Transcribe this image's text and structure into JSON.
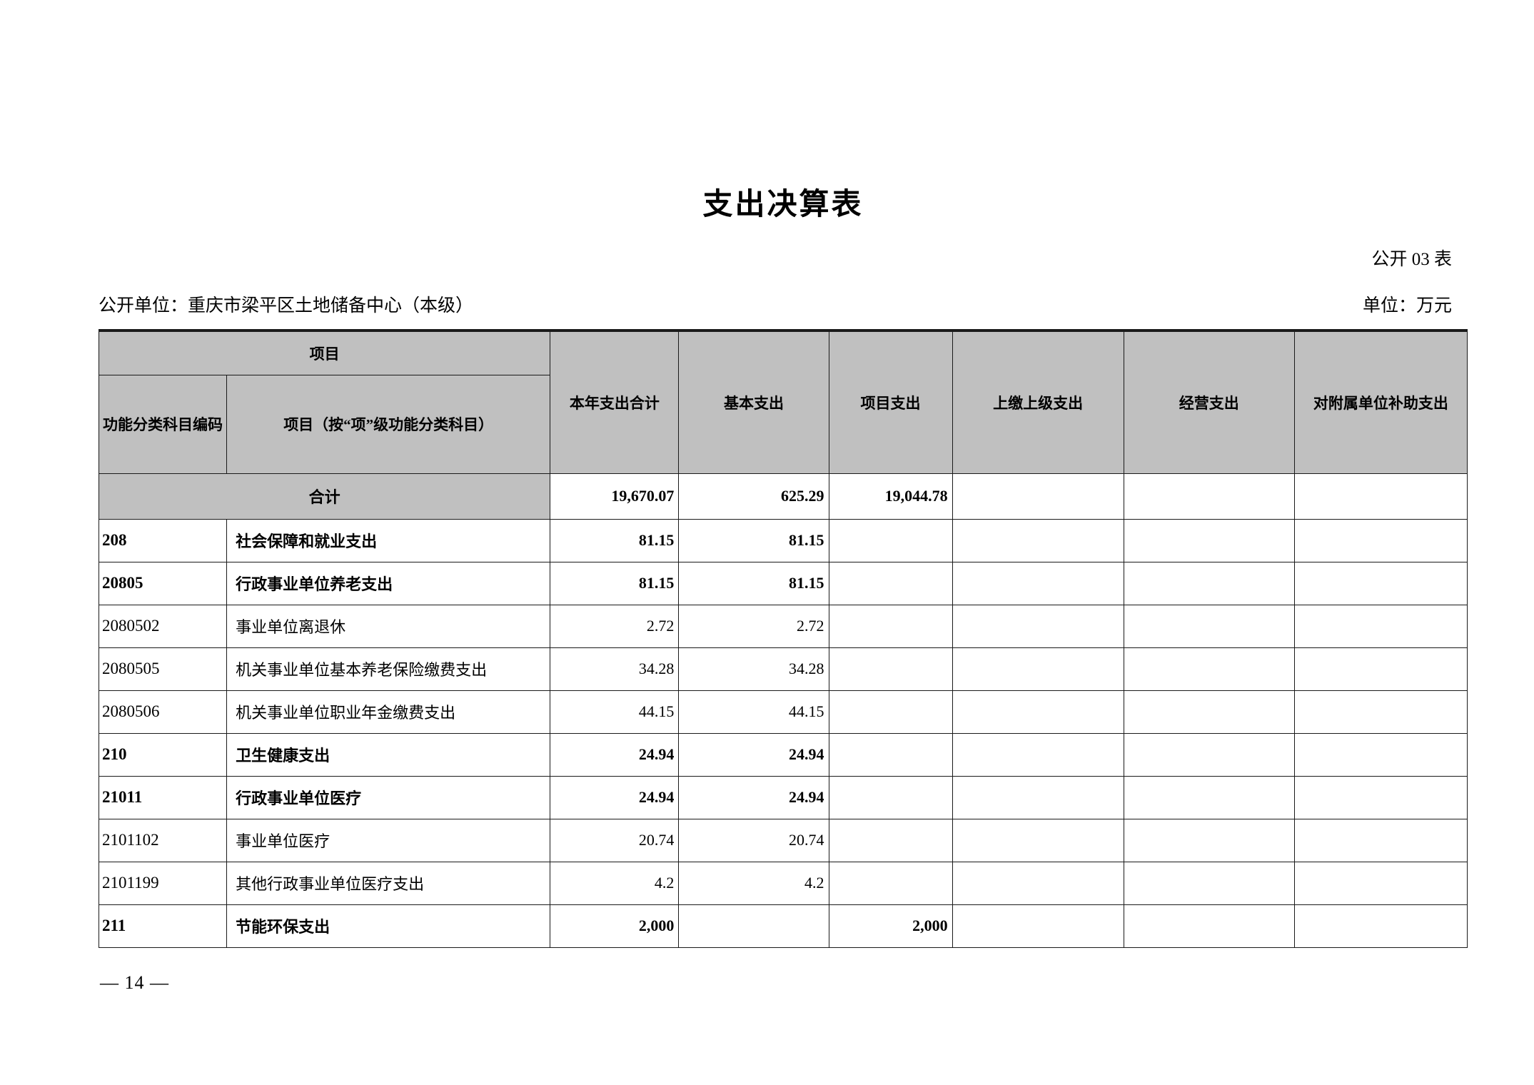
{
  "page": {
    "title": "支出决算表",
    "table_code": "公开 03 表",
    "publisher_line": "公开单位：重庆市梁平区土地储备中心（本级）",
    "unit_line": "单位：万元",
    "page_number": "— 14 —"
  },
  "colors": {
    "header_bg": "#c0c0c0",
    "border": "#1a1a1a",
    "page_bg": "#ffffff"
  },
  "table": {
    "header": {
      "project_group": "项目",
      "code_col": "功能分类科目编码",
      "item_col": "项目（按“项”级功能分类科目）",
      "year_total_col": "本年支出合计",
      "basic_col": "基本支出",
      "project_col": "项目支出",
      "upper_col": "上缴上级支出",
      "operating_col": "经营支出",
      "subsidy_col": "对附属单位补助支出"
    },
    "total_row": {
      "label": "合计",
      "year_total": "19,670.07",
      "basic": "625.29",
      "project": "19,044.78",
      "upper": "",
      "operating": "",
      "subsidy": ""
    },
    "rows": [
      {
        "code": "208",
        "name": "社会保障和就业支出",
        "year_total": "81.15",
        "basic": "81.15",
        "project": "",
        "upper": "",
        "operating": "",
        "subsidy": ""
      },
      {
        "code": "20805",
        "name": "行政事业单位养老支出",
        "year_total": "81.15",
        "basic": "81.15",
        "project": "",
        "upper": "",
        "operating": "",
        "subsidy": ""
      },
      {
        "code": "2080502",
        "name": "事业单位离退休",
        "year_total": "2.72",
        "basic": "2.72",
        "project": "",
        "upper": "",
        "operating": "",
        "subsidy": ""
      },
      {
        "code": "2080505",
        "name": "机关事业单位基本养老保险缴费支出",
        "year_total": "34.28",
        "basic": "34.28",
        "project": "",
        "upper": "",
        "operating": "",
        "subsidy": ""
      },
      {
        "code": "2080506",
        "name": "机关事业单位职业年金缴费支出",
        "year_total": "44.15",
        "basic": "44.15",
        "project": "",
        "upper": "",
        "operating": "",
        "subsidy": ""
      },
      {
        "code": "210",
        "name": "卫生健康支出",
        "year_total": "24.94",
        "basic": "24.94",
        "project": "",
        "upper": "",
        "operating": "",
        "subsidy": ""
      },
      {
        "code": "21011",
        "name": "行政事业单位医疗",
        "year_total": "24.94",
        "basic": "24.94",
        "project": "",
        "upper": "",
        "operating": "",
        "subsidy": ""
      },
      {
        "code": "2101102",
        "name": "事业单位医疗",
        "year_total": "20.74",
        "basic": "20.74",
        "project": "",
        "upper": "",
        "operating": "",
        "subsidy": ""
      },
      {
        "code": "2101199",
        "name": "其他行政事业单位医疗支出",
        "year_total": "4.2",
        "basic": "4.2",
        "project": "",
        "upper": "",
        "operating": "",
        "subsidy": ""
      },
      {
        "code": "211",
        "name": "节能环保支出",
        "year_total": "2,000",
        "basic": "",
        "project": "2,000",
        "upper": "",
        "operating": "",
        "subsidy": ""
      }
    ]
  }
}
